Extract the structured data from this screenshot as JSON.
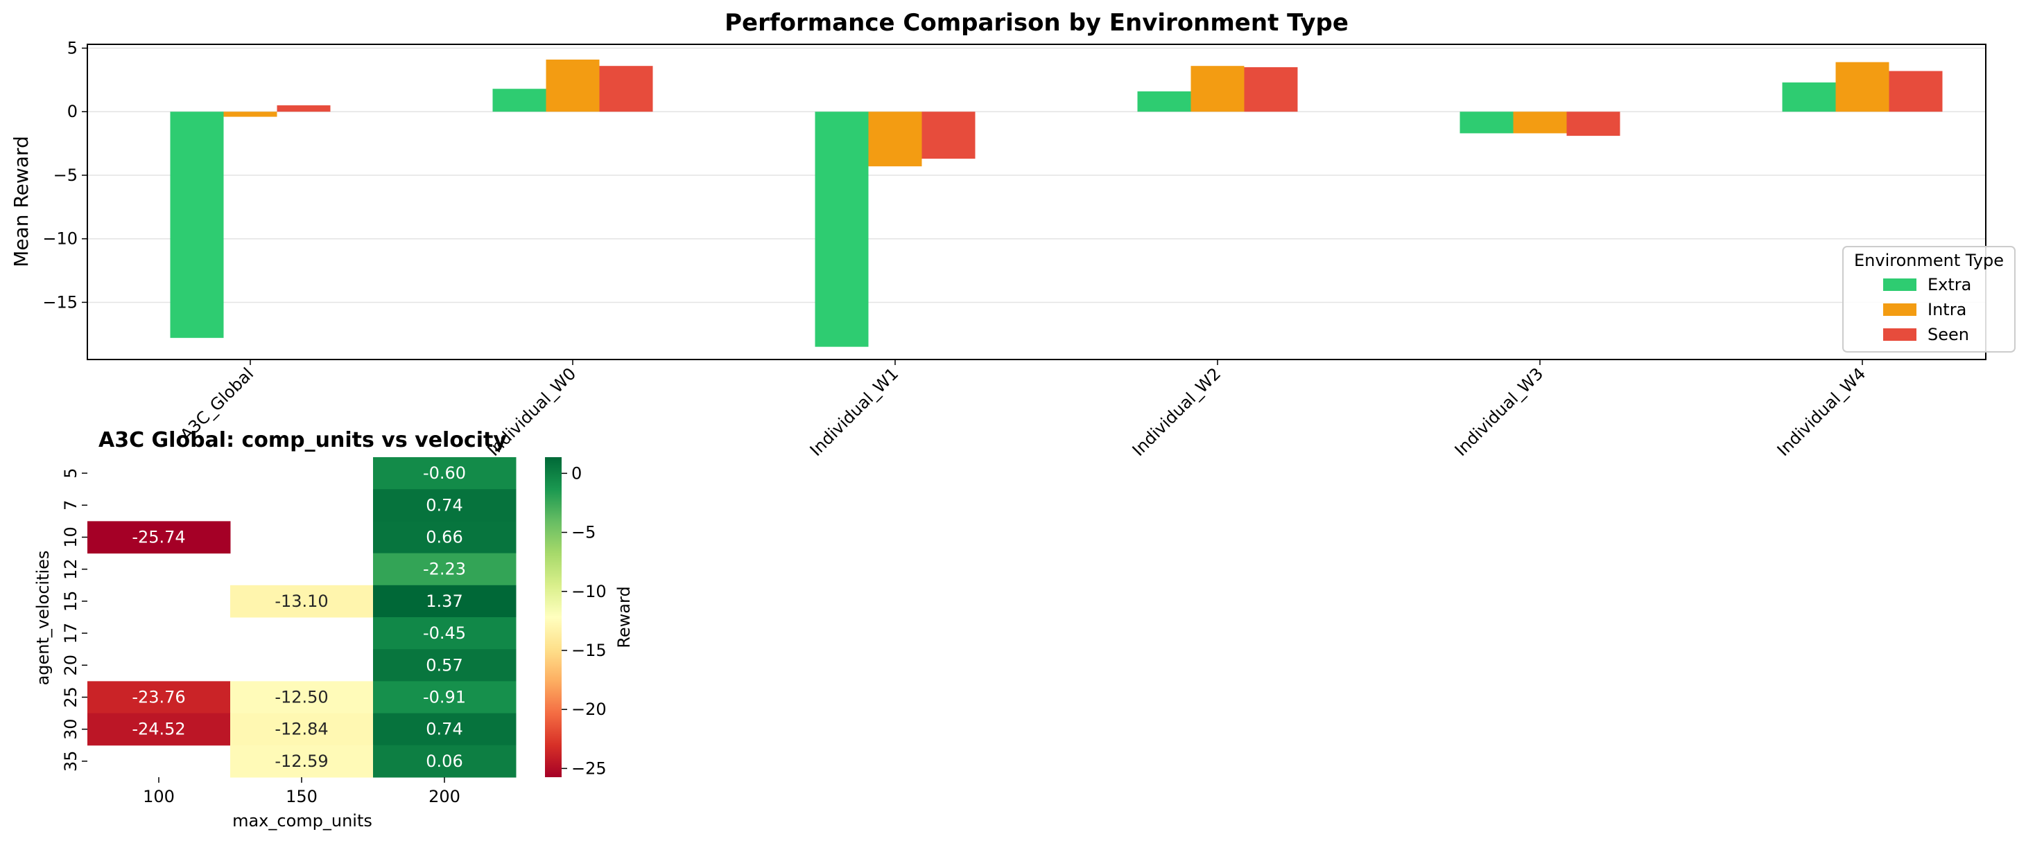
{
  "chart_data": [
    {
      "type": "bar",
      "title": "Performance Comparison by Environment Type",
      "xlabel": "",
      "ylabel": "Mean Reward",
      "ylim": [
        -19.5,
        5.3
      ],
      "yticks": [
        5,
        0,
        -5,
        -10,
        -15
      ],
      "ytick_labels": [
        "5",
        "0",
        "−5",
        "−10",
        "−15"
      ],
      "grid": true,
      "legend_title": "Environment Type",
      "legend_position": "lower-right",
      "categories": [
        "A3C_Global",
        "Individual_W0",
        "Individual_W1",
        "Individual_W2",
        "Individual_W3",
        "Individual_W4"
      ],
      "series": [
        {
          "name": "Extra",
          "color": "#2ecc71",
          "values": [
            -17.8,
            1.8,
            -18.5,
            1.6,
            -1.7,
            2.3
          ]
        },
        {
          "name": "Intra",
          "color": "#f39c12",
          "values": [
            -0.4,
            4.1,
            -4.3,
            3.6,
            -1.7,
            3.9
          ]
        },
        {
          "name": "Seen",
          "color": "#e74c3c",
          "values": [
            0.5,
            3.6,
            -3.7,
            3.5,
            -1.9,
            3.2
          ]
        }
      ]
    },
    {
      "type": "heatmap",
      "title": "A3C Global: comp_units vs velocity",
      "xlabel": "max_comp_units",
      "ylabel": "agent_velocities",
      "x_categories": [
        "100",
        "150",
        "200"
      ],
      "y_categories": [
        "5",
        "7",
        "10",
        "12",
        "15",
        "17",
        "20",
        "25",
        "30",
        "35"
      ],
      "cells": [
        [
          "",
          "",
          "-0.60"
        ],
        [
          "",
          "",
          "0.74"
        ],
        [
          "-25.74",
          "",
          "0.66"
        ],
        [
          "",
          "",
          "-2.23"
        ],
        [
          "",
          "-13.10",
          "1.37"
        ],
        [
          "",
          "",
          "-0.45"
        ],
        [
          "",
          "",
          "0.57"
        ],
        [
          "-23.76",
          "-12.50",
          "-0.91"
        ],
        [
          "-24.52",
          "-12.84",
          "0.74"
        ],
        [
          "",
          "-12.59",
          "0.06"
        ]
      ],
      "colorbar_label": "Reward",
      "colorbar_range": [
        -25.74,
        1.37
      ],
      "colorbar_ticks": [
        0,
        -5,
        -10,
        -15,
        -20,
        -25
      ],
      "colorbar_tick_labels": [
        "0",
        "−5",
        "−10",
        "−15",
        "−20",
        "−25"
      ],
      "colormap": "RdYlGn"
    }
  ]
}
